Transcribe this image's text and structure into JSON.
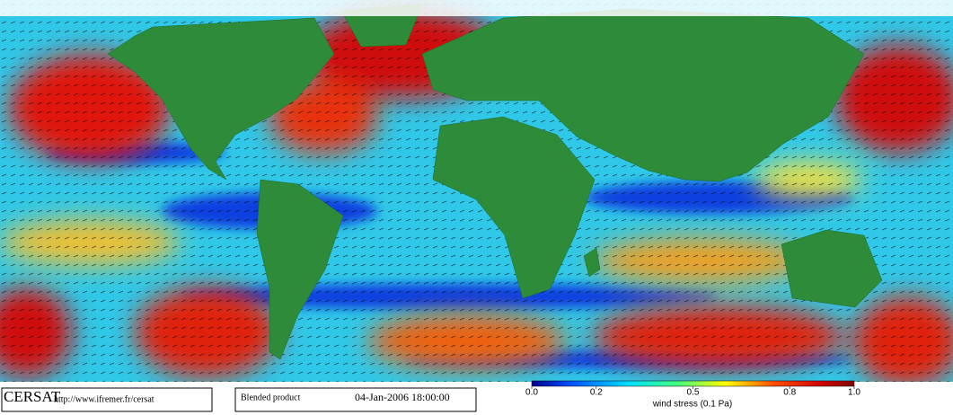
{
  "logo": "CERSAT",
  "url": "http://www.ifremer.fr/cersat",
  "product": "Blended product",
  "datetime": "04-Jan-2006 18:00:00",
  "colorbar": {
    "label": "wind stress (0.1 Pa)",
    "range": [
      0,
      1
    ],
    "ticks": [
      {
        "value": 0,
        "label": "0.0"
      },
      0.2,
      0.5,
      0.8,
      {
        "value": 1,
        "label": "1.0"
      }
    ]
  }
}
